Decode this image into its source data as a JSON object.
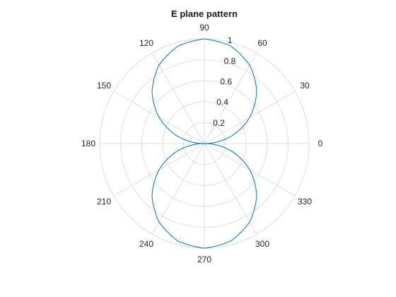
{
  "chart_data": {
    "type": "line",
    "projection": "polar",
    "title": "E plane pattern",
    "theta_unit": "degrees",
    "r_lim": [
      0,
      1
    ],
    "r_ticks": [
      0.2,
      0.4,
      0.6,
      0.8,
      1
    ],
    "r_tick_labels": [
      "0.2",
      "0.4",
      "0.6",
      "0.8",
      "1"
    ],
    "theta_ticks": [
      0,
      30,
      60,
      90,
      120,
      150,
      180,
      210,
      240,
      270,
      300,
      330
    ],
    "theta_tick_labels": [
      "0",
      "30",
      "60",
      "90",
      "120",
      "150",
      "180",
      "210",
      "240",
      "270",
      "300",
      "330"
    ],
    "grid": true,
    "legend": "none",
    "colors": {
      "series": "#0072BD",
      "grid": "#dcdcdc",
      "text": "#262626"
    },
    "series": [
      {
        "theta": [
          0,
          15,
          30,
          45,
          60,
          75,
          90,
          105,
          120,
          135,
          150,
          165,
          180,
          195,
          210,
          225,
          240,
          255,
          270,
          285,
          300,
          315,
          330,
          345,
          360
        ],
        "r": [
          0,
          0.259,
          0.5,
          0.707,
          0.866,
          0.966,
          1,
          0.966,
          0.866,
          0.707,
          0.5,
          0.259,
          0,
          0.259,
          0.5,
          0.707,
          0.866,
          0.966,
          1,
          0.966,
          0.866,
          0.707,
          0.5,
          0.259,
          0
        ]
      }
    ]
  }
}
